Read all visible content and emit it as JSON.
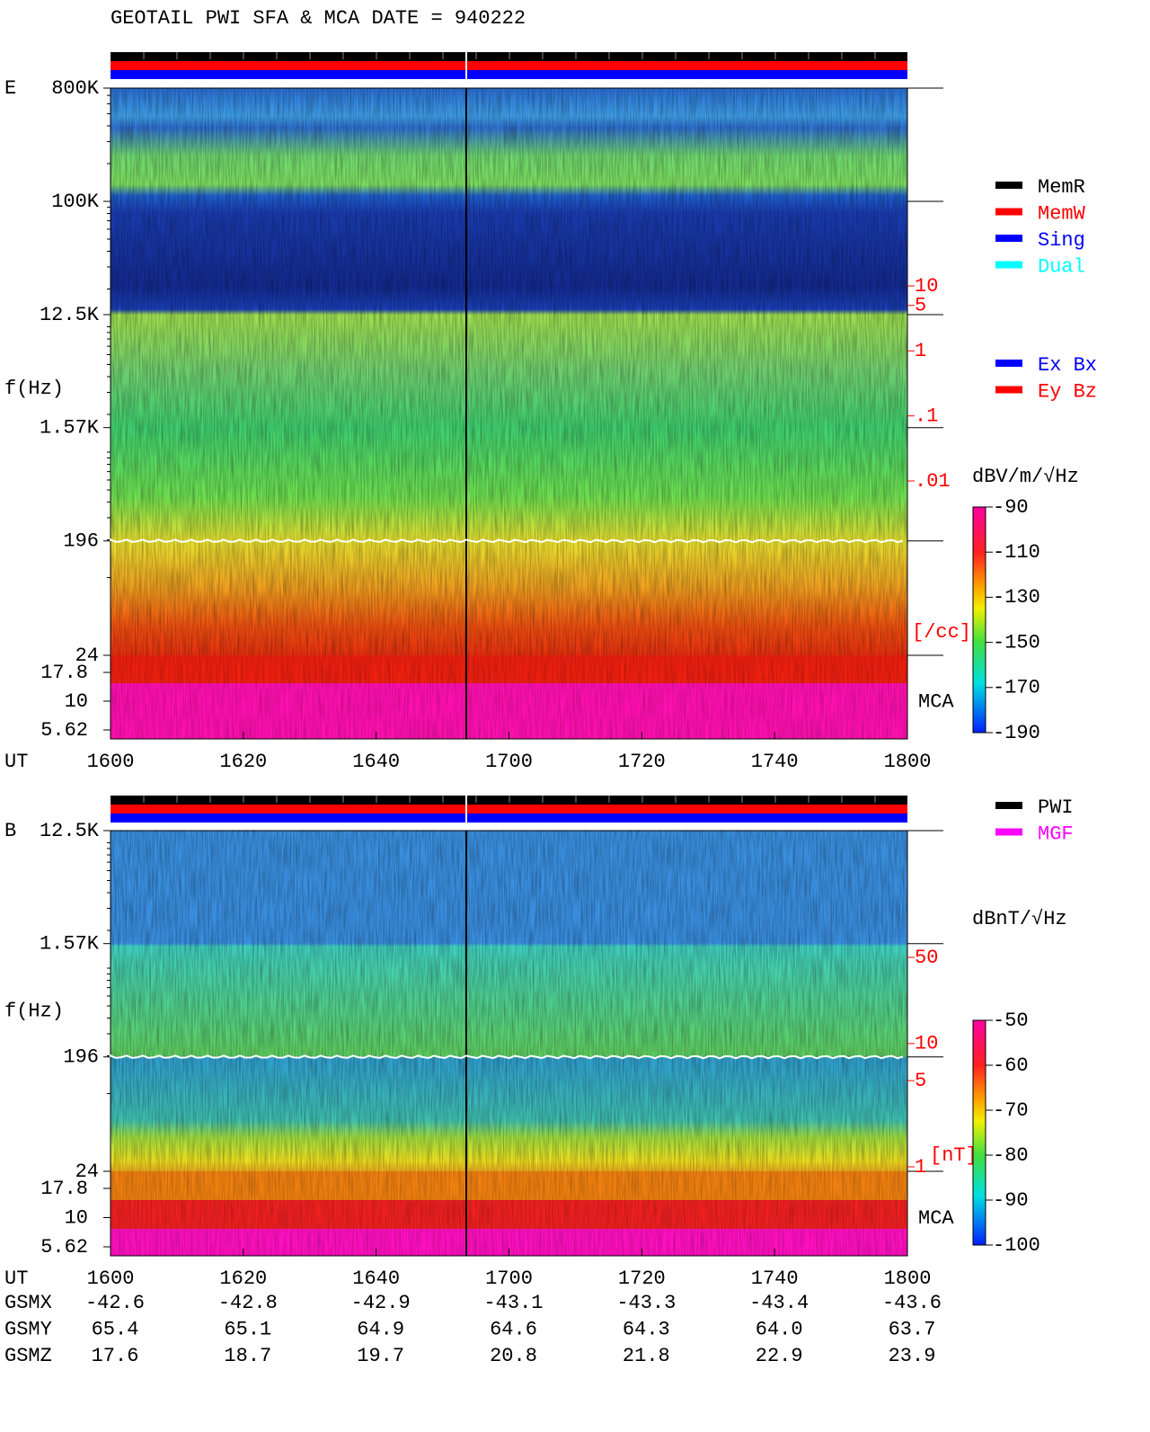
{
  "title": "GEOTAIL   PWI SFA & MCA   DATE = 940222",
  "chart_data": [
    {
      "type": "spectrogram",
      "panel_label": "E",
      "ylabel": "f(Hz)",
      "xlabel": "UT",
      "log_y": true,
      "x": [
        "1600",
        "1620",
        "1640",
        "1700",
        "1720",
        "1740",
        "1800"
      ],
      "ylim": [
        24,
        800000
      ],
      "yticks": [
        {
          "value": 800000,
          "label": "800K"
        },
        {
          "value": 100000,
          "label": "100K"
        },
        {
          "value": 12500,
          "label": "12.5K"
        },
        {
          "value": 1570,
          "label": "1.57K"
        },
        196,
        24
      ],
      "mca_label": "MCA",
      "mca_ticks": [
        17.8,
        10,
        5.62
      ],
      "density_unit": "[/cc]",
      "density_lim": [
        0.01,
        10
      ],
      "density_ticks": [
        10,
        5,
        1,
        {
          "value": 0.1,
          "label": ".1"
        },
        {
          "value": 0.01,
          "label": ".01"
        }
      ],
      "colorbar_label": "dBV/m/√Hz",
      "zlim": [
        -190,
        -90
      ],
      "zticks": [
        -90,
        -110,
        -130,
        -150,
        -170,
        -190
      ],
      "legend": [
        {
          "name": "MemR",
          "color": "#000000"
        },
        {
          "name": "MemW",
          "color": "#ff0000"
        },
        {
          "name": "Sing",
          "color": "#0000ff"
        },
        {
          "name": "Dual",
          "color": "#00ffff"
        }
      ],
      "legend2": [
        {
          "name": "Ex Bx",
          "color": "#0000ff"
        },
        {
          "name": "Ey Bz",
          "color": "#ff0000"
        }
      ]
    },
    {
      "type": "spectrogram",
      "panel_label": "B",
      "ylabel": "f(Hz)",
      "xlabel": "UT",
      "log_y": true,
      "x": [
        "1600",
        "1620",
        "1640",
        "1700",
        "1720",
        "1740",
        "1800"
      ],
      "ylim": [
        24,
        12500
      ],
      "yticks": [
        {
          "value": 12500,
          "label": "12.5K"
        },
        {
          "value": 1570,
          "label": "1.57K"
        },
        196,
        24
      ],
      "mca_label": "MCA",
      "mca_ticks": [
        17.8,
        10,
        5.62
      ],
      "density_unit": "[nT]",
      "density_lim": [
        1,
        50
      ],
      "density_ticks": [
        50,
        10,
        5,
        1
      ],
      "colorbar_label": "dBnT/√Hz",
      "zlim": [
        -100,
        -50
      ],
      "zticks": [
        -50,
        -60,
        -70,
        -80,
        -90,
        -100
      ],
      "legend": [
        {
          "name": "PWI",
          "color": "#000000"
        },
        {
          "name": "MGF",
          "color": "#ff00ff"
        }
      ]
    }
  ],
  "ephemeris": {
    "labels": [
      "GSMX",
      "GSMY",
      "GSMZ"
    ],
    "rows": [
      [
        "-42.6",
        "-42.8",
        "-42.9",
        "-43.1",
        "-43.3",
        "-43.4",
        "-43.6"
      ],
      [
        "65.4",
        "65.1",
        "64.9",
        "64.6",
        "64.3",
        "64.0",
        "63.7"
      ],
      [
        "17.6",
        "18.7",
        "19.7",
        "20.8",
        "21.8",
        "22.9",
        "23.9"
      ]
    ]
  }
}
